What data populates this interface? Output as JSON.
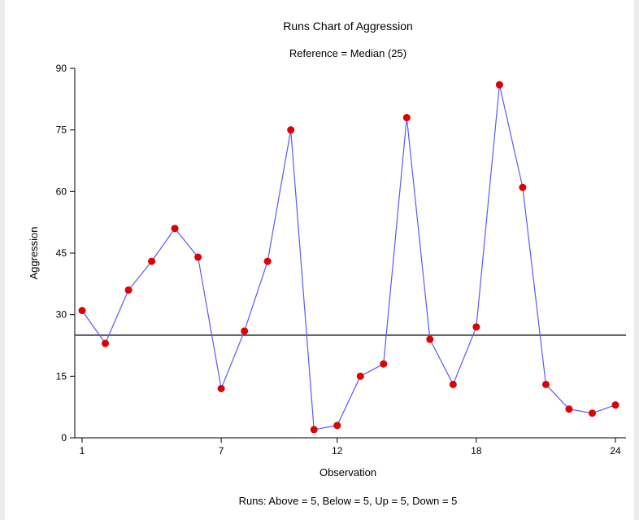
{
  "chart_data": {
    "type": "line",
    "title": "Runs Chart of Aggression",
    "subtitle": "Reference = Median (25)",
    "xlabel": "Observation",
    "ylabel": "Aggression",
    "footer": "Runs: Above = 5, Below = 5, Up = 5, Down = 5",
    "x": [
      1,
      2,
      3,
      4,
      5,
      6,
      7,
      8,
      9,
      10,
      11,
      12,
      13,
      14,
      15,
      16,
      17,
      18,
      19,
      20,
      21,
      22,
      23,
      24
    ],
    "series": [
      {
        "values": [
          31,
          23,
          36,
          43,
          51,
          44,
          12,
          26,
          43,
          75,
          2,
          3,
          15,
          18,
          78,
          24,
          13,
          27,
          86,
          61,
          13,
          7,
          6,
          8
        ]
      }
    ],
    "reference_line": 25,
    "xlim": [
      1,
      24
    ],
    "ylim": [
      0,
      90
    ],
    "xticks": [
      1,
      7,
      12,
      18,
      24
    ],
    "yticks": [
      0,
      15,
      30,
      45,
      60,
      75,
      90
    ],
    "grid": false,
    "colors": {
      "line": "#5a5aff",
      "marker": "#e00000",
      "reference": "#555555",
      "axis": "#000000"
    }
  }
}
